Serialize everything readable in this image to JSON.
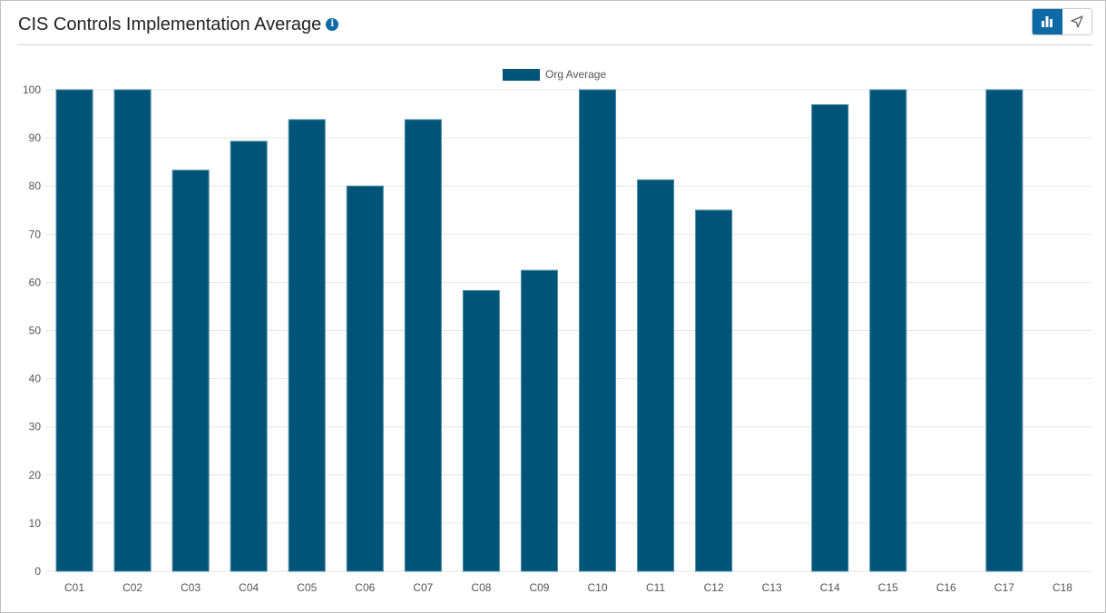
{
  "widget": {
    "title": "CIS Controls Implementation Average",
    "info_icon": "info-icon",
    "view_toggle": [
      {
        "icon": "bar-chart-icon",
        "active": true
      },
      {
        "icon": "send-arrow-icon",
        "active": false
      }
    ]
  },
  "colors": {
    "bar": "#005478",
    "grid": "#e6e6e6",
    "accent": "#0c6aa6"
  },
  "chart_data": {
    "type": "bar",
    "categories": [
      "C01",
      "C02",
      "C03",
      "C04",
      "C05",
      "C06",
      "C07",
      "C08",
      "C09",
      "C10",
      "C11",
      "C12",
      "C13",
      "C14",
      "C15",
      "C16",
      "C17",
      "C18"
    ],
    "series": [
      {
        "name": "Org Average",
        "values": [
          100,
          100,
          83.3,
          89.3,
          93.8,
          80,
          93.8,
          58.3,
          62.5,
          100,
          81.3,
          75,
          0,
          96.9,
          100,
          0,
          100,
          0
        ]
      }
    ],
    "ylim": [
      0,
      100
    ],
    "yticks": [
      0,
      10,
      20,
      30,
      40,
      50,
      60,
      70,
      80,
      90,
      100
    ],
    "legend": "top-center",
    "grid": true
  }
}
